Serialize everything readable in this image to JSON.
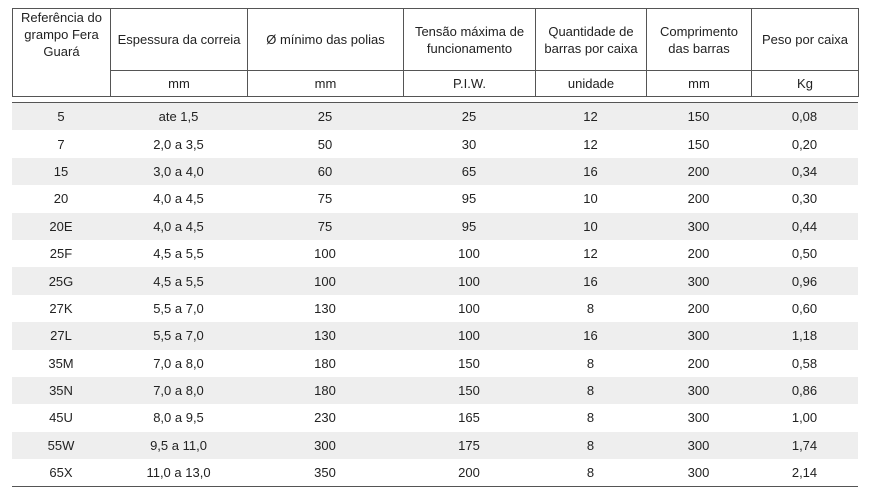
{
  "header": {
    "labels": [
      "Referência do grampo Fera Guará",
      "Espessura da correia",
      "Ø mínimo das polias",
      "Tensão máxima de funcionamento",
      "Quantidade de barras por caixa",
      "Comprimento das barras",
      "Peso por caixa"
    ],
    "units": [
      "mm",
      "mm",
      "P.I.W.",
      "unidade",
      "mm",
      "Kg"
    ]
  },
  "table": {
    "rows": [
      [
        "5",
        "ate 1,5",
        "25",
        "25",
        "12",
        "150",
        "0,08"
      ],
      [
        "7",
        "2,0 a 3,5",
        "50",
        "30",
        "12",
        "150",
        "0,20"
      ],
      [
        "15",
        "3,0 a 4,0",
        "60",
        "65",
        "16",
        "200",
        "0,34"
      ],
      [
        "20",
        "4,0 a 4,5",
        "75",
        "95",
        "10",
        "200",
        "0,30"
      ],
      [
        "20E",
        "4,0 a 4,5",
        "75",
        "95",
        "10",
        "300",
        "0,44"
      ],
      [
        "25F",
        "4,5 a 5,5",
        "100",
        "100",
        "12",
        "200",
        "0,50"
      ],
      [
        "25G",
        "4,5 a 5,5",
        "100",
        "100",
        "16",
        "300",
        "0,96"
      ],
      [
        "27K",
        "5,5 a 7,0",
        "130",
        "100",
        "8",
        "200",
        "0,60"
      ],
      [
        "27L",
        "5,5 a 7,0",
        "130",
        "100",
        "16",
        "300",
        "1,18"
      ],
      [
        "35M",
        "7,0 a 8,0",
        "180",
        "150",
        "8",
        "200",
        "0,58"
      ],
      [
        "35N",
        "7,0 a 8,0",
        "180",
        "150",
        "8",
        "300",
        "0,86"
      ],
      [
        "45U",
        "8,0 a 9,5",
        "230",
        "165",
        "8",
        "300",
        "1,00"
      ],
      [
        "55W",
        "9,5 a 11,0",
        "300",
        "175",
        "8",
        "300",
        "1,74"
      ],
      [
        "65X",
        "11,0 a 13,0",
        "350",
        "200",
        "8",
        "300",
        "2,14"
      ]
    ]
  }
}
